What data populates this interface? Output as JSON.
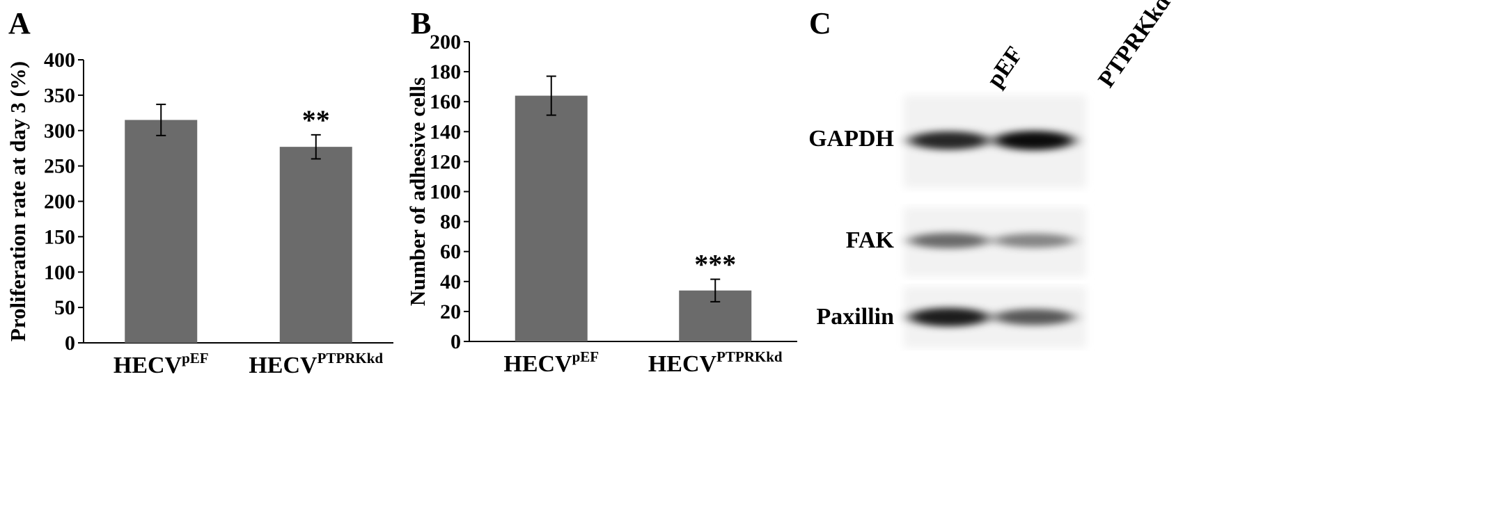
{
  "panels": {
    "a": {
      "letter": "A"
    },
    "b": {
      "letter": "B"
    },
    "c": {
      "letter": "C"
    }
  },
  "chart_data": [
    {
      "type": "bar",
      "ylabel": "Proliferation rate at day 3 (%)",
      "xlabel": "",
      "ylim": [
        0,
        400
      ],
      "yticks": [
        0,
        50,
        100,
        150,
        200,
        250,
        300,
        350,
        400
      ],
      "categories": [
        {
          "base": "HECV",
          "sup": "pEF"
        },
        {
          "base": "HECV",
          "sup": "PTPRKkd"
        }
      ],
      "values": [
        315,
        277
      ],
      "errors": [
        22,
        17
      ],
      "significance": [
        "",
        "**"
      ],
      "bar_color": "#6b6b6b",
      "grid": false
    },
    {
      "type": "bar",
      "ylabel": "Number of adhesive cells",
      "xlabel": "",
      "ylim": [
        0,
        200
      ],
      "yticks": [
        0,
        20,
        40,
        60,
        80,
        100,
        120,
        140,
        160,
        180,
        200
      ],
      "categories": [
        {
          "base": "HECV",
          "sup": "pEF"
        },
        {
          "base": "HECV",
          "sup": "PTPRKkd"
        }
      ],
      "values": [
        164,
        34
      ],
      "errors": [
        13,
        7.5
      ],
      "significance": [
        "",
        "***"
      ],
      "bar_color": "#6b6b6b",
      "grid": false
    }
  ],
  "blot": {
    "lanes": [
      "pEF",
      "PTPRKkd"
    ],
    "bands": [
      {
        "label": "GAPDH",
        "intensity": [
          0.85,
          1.0
        ]
      },
      {
        "label": "FAK",
        "intensity": [
          0.45,
          0.28
        ]
      },
      {
        "label": "Paxillin",
        "intensity": [
          0.9,
          0.55
        ]
      }
    ]
  }
}
